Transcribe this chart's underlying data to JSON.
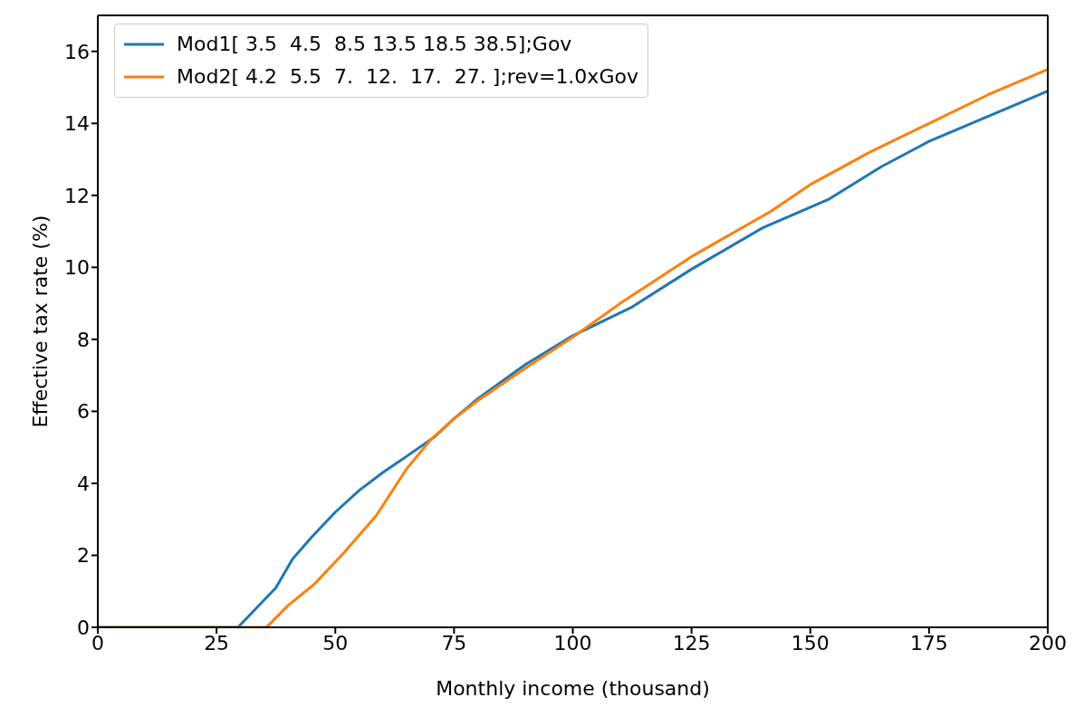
{
  "chart_data": {
    "type": "line",
    "xlabel": "Monthly income (thousand)",
    "ylabel": "Effective tax rate (%)",
    "xlim": [
      0,
      200
    ],
    "xticks": [
      0,
      25,
      50,
      75,
      100,
      125,
      150,
      175,
      200
    ],
    "ylim": [
      0,
      17
    ],
    "yticks": [
      0,
      2,
      4,
      6,
      8,
      10,
      12,
      14,
      16
    ],
    "grid": false,
    "legend": "top left",
    "marker": "none",
    "line_style": "solid",
    "series": [
      {
        "name": "Mod1[ 3.5  4.5  8.5 13.5 18.5 38.5];Gov",
        "color": "#1f77b4",
        "x": [
          0,
          29.5,
          37.5,
          41,
          45,
          50,
          55,
          60,
          65,
          71,
          75,
          80,
          90,
          100,
          112.5,
          125,
          140,
          154,
          165,
          175,
          187.5,
          200
        ],
        "values": [
          0,
          0,
          1.1,
          1.9,
          2.5,
          3.2,
          3.8,
          4.3,
          4.75,
          5.3,
          5.8,
          6.35,
          7.3,
          8.1,
          8.9,
          9.95,
          11.1,
          11.9,
          12.8,
          13.5,
          14.2,
          14.9
        ]
      },
      {
        "name": "Mod2[ 4.2  5.5  7.  12.  17.  27. ];rev=1.0xGov",
        "color": "#ff7f0e",
        "x": [
          0,
          35.5,
          40,
          45.6,
          52,
          58.6,
          65,
          70,
          75,
          80,
          90,
          100.4,
          110,
          125,
          141.6,
          150,
          162.5,
          175,
          187.5,
          200
        ],
        "values": [
          0,
          0,
          0.6,
          1.2,
          2.1,
          3.1,
          4.4,
          5.2,
          5.8,
          6.3,
          7.2,
          8.1,
          9.0,
          10.3,
          11.55,
          12.3,
          13.2,
          14.0,
          14.8,
          15.5
        ]
      }
    ]
  }
}
